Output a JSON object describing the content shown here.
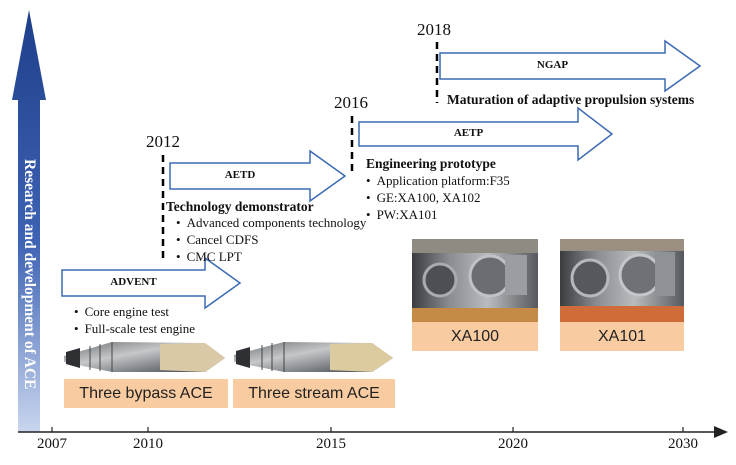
{
  "vertical_label": "Research and development of ACE",
  "timeline": {
    "axis_labels": [
      "2007",
      "2010",
      "2015",
      "2020",
      "2030"
    ]
  },
  "milestones": [
    {
      "year": "2012"
    },
    {
      "year": "2016"
    },
    {
      "year": "2018"
    }
  ],
  "arrows": {
    "advent": "ADVENT",
    "aetd": "AETD",
    "aetp": "AETP",
    "ngap": "NGAP"
  },
  "advent": {
    "bullets": [
      "Core engine test",
      "Full-scale test engine"
    ]
  },
  "aetd": {
    "heading": "Technology demonstrator",
    "bullets": [
      "Advanced components technology",
      "Cancel CDFS",
      "CMC LPT"
    ]
  },
  "aetp": {
    "heading": "Engineering prototype",
    "bullets": [
      "Application platform:F35",
      "GE:XA100, XA102",
      "PW:XA101"
    ]
  },
  "ngap": {
    "heading": "Maturation of adaptive propulsion systems"
  },
  "engine_tags": {
    "three_bypass": "Three bypass ACE",
    "three_stream": "Three stream ACE",
    "xa100": "XA100",
    "xa101": "XA101"
  }
}
